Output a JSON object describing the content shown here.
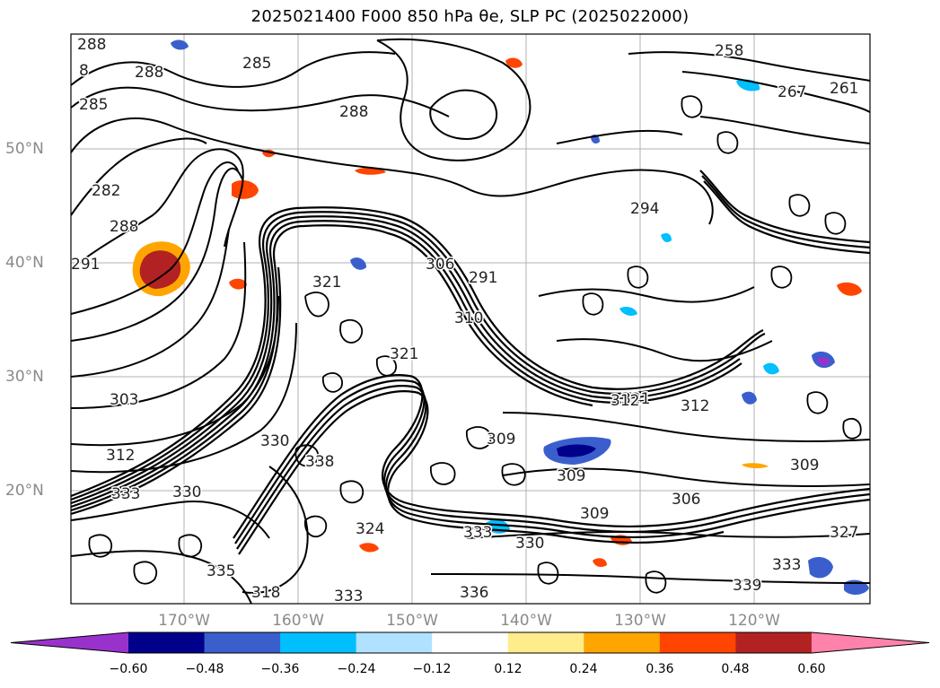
{
  "figure": {
    "title": "2025021400 F000 850 hPa θe, SLP PC (2025022000)"
  },
  "map": {
    "lon_labels": [
      "170°W",
      "160°W",
      "150°W",
      "140°W",
      "130°W",
      "120°W"
    ],
    "lat_labels": [
      "50°N",
      "40°N",
      "30°N",
      "20°N"
    ],
    "contour_labels": [
      "288",
      "285",
      "288",
      "285",
      "288",
      "282",
      "288",
      "291",
      "303",
      "312",
      "333",
      "330",
      "330",
      "258",
      "267",
      "261",
      "294",
      "291",
      "306",
      "310",
      "321",
      "312",
      "321",
      "309",
      "309",
      "309",
      "306",
      "327",
      "339",
      "333",
      "336",
      "333",
      "318",
      "335",
      "324",
      "321",
      "338",
      "312",
      "309",
      "333",
      "330",
      "8"
    ]
  },
  "colorbar": {
    "ticks": [
      "−0.60",
      "−0.48",
      "−0.36",
      "−0.24",
      "−0.12",
      "0.12",
      "0.24",
      "0.36",
      "0.48",
      "0.60"
    ],
    "colors": [
      "#9932CC",
      "#00008B",
      "#3A5FCD",
      "#00BFFF",
      "#B0E2FF",
      "#FFFFFF",
      "#FFEC8B",
      "#FFA500",
      "#FF4500",
      "#B22222",
      "#FF82AB"
    ]
  }
}
